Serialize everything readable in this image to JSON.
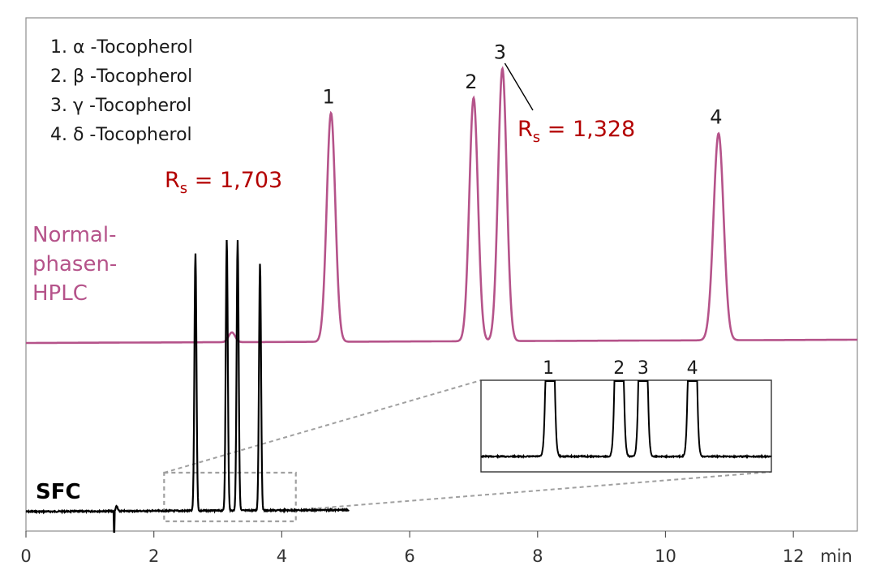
{
  "chart_data": {
    "type": "line",
    "xlabel": "min",
    "xlim": [
      0,
      13
    ],
    "x_ticks": [
      {
        "label": "0",
        "value": 0,
        "highlight": false
      },
      {
        "label": "2",
        "value": 2,
        "highlight": false
      },
      {
        "label": "4",
        "value": 4,
        "highlight": true
      },
      {
        "label": "6",
        "value": 6,
        "highlight": false
      },
      {
        "label": "8",
        "value": 8,
        "highlight": false
      },
      {
        "label": "10",
        "value": 10,
        "highlight": false
      },
      {
        "label": "12",
        "value": 12,
        "highlight": true
      }
    ],
    "legend": [
      "1. α -Tocopherol",
      "2. β -Tocopherol",
      "3. γ -Tocopherol",
      "4. δ -Tocopherol"
    ],
    "series": [
      {
        "name": "Normal-phasen-HPLC",
        "name_lines": [
          "Normal-",
          "phasen-",
          "HPLC"
        ],
        "color": "#b5538a",
        "peaks": [
          {
            "label": "1",
            "time": 4.77,
            "height": 0.94
          },
          {
            "label": "2",
            "time": 7.0,
            "height": 1.0
          },
          {
            "label": "3",
            "time": 7.45,
            "height": 1.12
          },
          {
            "label": "4",
            "time": 10.83,
            "height": 0.85
          }
        ]
      },
      {
        "name": "SFC",
        "color": "#000000",
        "peaks": [
          {
            "label": "1",
            "time": 2.65,
            "height": 1.0
          },
          {
            "label": "2",
            "time": 3.14,
            "height": 1.05
          },
          {
            "label": "3",
            "time": 3.31,
            "height": 1.05
          },
          {
            "label": "4",
            "time": 3.66,
            "height": 0.96
          }
        ]
      }
    ],
    "annotations": {
      "rs_hplc": {
        "text": "R",
        "sub": "s",
        "value": " = 1,328"
      },
      "rs_sfc": {
        "text": "R",
        "sub": "s",
        "value": " = 1,703"
      }
    },
    "inset": {
      "peak_labels": [
        "1",
        "2",
        "3",
        "4"
      ]
    },
    "colors": {
      "accent": "#b30000",
      "axis": "#888888",
      "zoom_box": "#a0a0a0"
    }
  }
}
